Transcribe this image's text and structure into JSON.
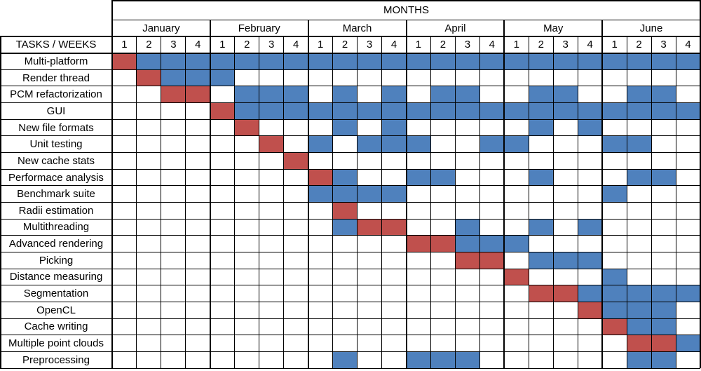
{
  "title": "MONTHS",
  "corner_label": "TASKS / WEEKS",
  "months": [
    "January",
    "February",
    "March",
    "April",
    "May",
    "June"
  ],
  "weeks": [
    "1",
    "2",
    "3",
    "4"
  ],
  "colors": {
    "primary": "#c0504d",
    "secondary": "#4f81bd",
    "grid": "#000000",
    "background": "#ffffff"
  },
  "legend_note": "",
  "tasks": [
    {
      "name": "Multi-platform",
      "cells": "PSSSSSSSSSSSSSSSSSSSSSSS"
    },
    {
      "name": "Render thread",
      "cells": ".PSSS..................."
    },
    {
      "name": "PCM refactorization",
      "cells": "..PP.SSS.S.S.SS..SS..SS."
    },
    {
      "name": "GUI",
      "cells": "....PSSSSSSSSSSSSSSSSSSS"
    },
    {
      "name": "New file formats",
      "cells": ".....P...S.S.....S.S...."
    },
    {
      "name": "Unit testing",
      "cells": "......P.S.SSS..SS...SS.."
    },
    {
      "name": "New cache stats",
      "cells": ".......P................"
    },
    {
      "name": "Performace analysis",
      "cells": "........PS..SS...S...SS."
    },
    {
      "name": "Benchmark suite",
      "cells": "........SSSS........S..."
    },
    {
      "name": "Radii estimation",
      "cells": ".........P.............."
    },
    {
      "name": "Multithreading",
      "cells": ".........SPP..S..S.S...."
    },
    {
      "name": "Advanced rendering",
      "cells": "............PPSSS......."
    },
    {
      "name": "Picking",
      "cells": "..............PP.SSS...."
    },
    {
      "name": "Distance measuring",
      "cells": "................P...S..."
    },
    {
      "name": "Segmentation",
      "cells": ".................PPSSSSS"
    },
    {
      "name": "OpenCL",
      "cells": "...................PSSS."
    },
    {
      "name": "Cache writing",
      "cells": "....................PSS."
    },
    {
      "name": "Multiple point clouds",
      "cells": ".....................PPS"
    },
    {
      "name": "Preprocessing",
      "cells": ".........S..SSS......SS."
    }
  ]
}
